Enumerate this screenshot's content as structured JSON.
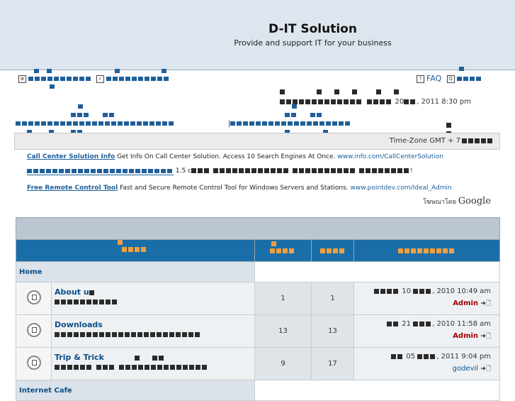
{
  "header": {
    "site_title": "D-IT Solution",
    "site_description": "Provide and support IT for your business"
  },
  "nav": {
    "faq_label": "FAQ"
  },
  "status": {
    "last_visit_date": "20",
    "last_visit_time": ", 2011 8:30 pm",
    "timezone": "Time-Zone GMT + 7"
  },
  "ads": [
    {
      "title": "Call Center Solution Info",
      "text": "Get Info On Call Center Solution. Access 10 Search Engines At Once.",
      "url": "www.info.com/CallCenterSolution"
    },
    {
      "title": "",
      "text": "1.5 c",
      "url": ""
    },
    {
      "title": "Free Remote Control Tool",
      "text": "Fast and Secure Remote Control Tool for Windows Servers and Stations.",
      "url": "www.pointdev.com/Ideal_Admin"
    }
  ],
  "google": {
    "prefix": "โฆษณาโดย",
    "brand": "Google"
  },
  "categories": [
    {
      "name": "Home",
      "forums": [
        {
          "name": "About u",
          "topics": "1",
          "posts": "1",
          "last_day": "10",
          "last_time": ", 2010 10:49 am",
          "last_user": "Admin",
          "user_style": "admin"
        },
        {
          "name": "Downloads",
          "topics": "13",
          "posts": "13",
          "last_day": "21",
          "last_time": ", 2010 11:58 am",
          "last_user": "Admin",
          "user_style": "admin"
        },
        {
          "name": "Trip & Trick",
          "topics": "9",
          "posts": "17",
          "last_day": "05",
          "last_time": ", 2011 9:04 pm",
          "last_user": "godevil",
          "user_style": "user"
        }
      ]
    },
    {
      "name": "Internet Cafe",
      "forums": []
    }
  ],
  "colors": {
    "header_bg": "#dde5ee",
    "table_head": "#1a6ea8",
    "accent_orange": "#f0a040",
    "link_blue": "#0d4f86",
    "admin_red": "#a00000"
  }
}
